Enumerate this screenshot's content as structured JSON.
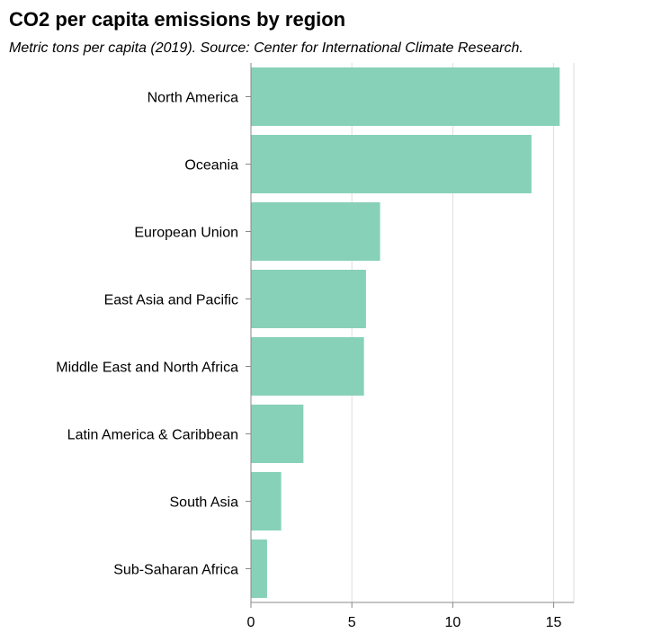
{
  "chart_data": {
    "type": "bar",
    "orientation": "horizontal",
    "title": "CO2 per capita emissions by region",
    "subtitle": "Metric tons per capita (2019). Source: Center for International Climate Research.",
    "xlabel": "",
    "ylabel": "",
    "categories": [
      "North America",
      "Oceania",
      "European Union",
      "East Asia and Pacific",
      "Middle East and North Africa",
      "Latin America & Caribbean",
      "South Asia",
      "Sub-Saharan Africa"
    ],
    "values": [
      15.3,
      13.9,
      6.4,
      5.7,
      5.6,
      2.6,
      1.5,
      0.8
    ],
    "xlim": [
      0,
      16
    ],
    "x_ticks": [
      0,
      5,
      10,
      15
    ],
    "x_tick_labels": [
      "0",
      "5",
      "10",
      "15"
    ],
    "grid": "vertical",
    "legend": "none",
    "colors": {
      "bar": "#88d1b9",
      "grid": "#dddddd",
      "axis": "#888888",
      "text": "#000000"
    }
  }
}
